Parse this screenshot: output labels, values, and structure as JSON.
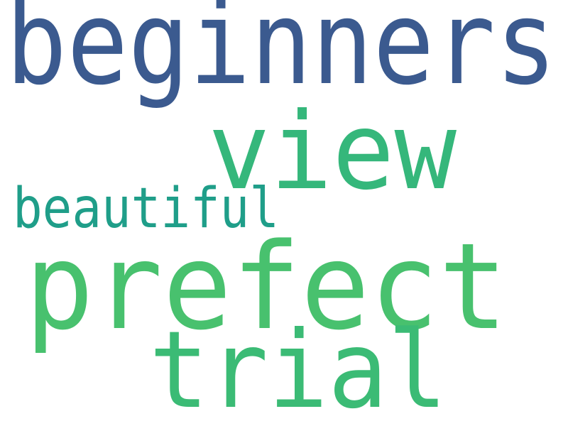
{
  "words": [
    {
      "id": "beginners",
      "text": "beginners",
      "color": "#3b5a8f"
    },
    {
      "id": "view",
      "text": "view",
      "color": "#35b77b"
    },
    {
      "id": "beautiful",
      "text": "beautiful",
      "color": "#1f9e89"
    },
    {
      "id": "prefect",
      "text": "prefect",
      "color": "#48c16e"
    },
    {
      "id": "trial",
      "text": "trial",
      "color": "#3bbb75"
    }
  ]
}
